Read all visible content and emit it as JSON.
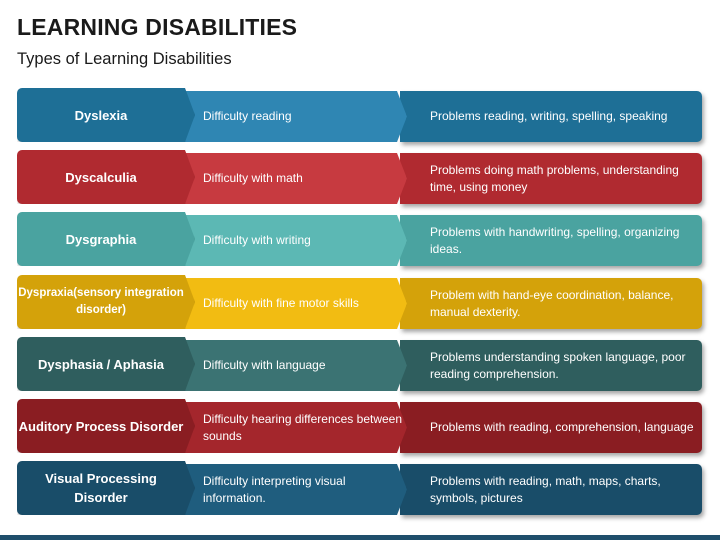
{
  "header": {
    "title": "LEARNING DISABILITIES",
    "subtitle": "Types of Learning Disabilities"
  },
  "rows": [
    {
      "name": "Dyslexia",
      "short": "Difficulty reading",
      "detail": "Problems reading, writing, spelling, speaking",
      "color": "#1e6f96",
      "color_light": "#2f86b3"
    },
    {
      "name": "Dyscalculia",
      "short": "Difficulty with math",
      "detail": "Problems doing math problems, understanding time, using money",
      "color": "#b02a30",
      "color_light": "#c73a40"
    },
    {
      "name": "Dysgraphia",
      "short": "Difficulty with writing",
      "detail": "Problems with handwriting, spelling, organizing ideas.",
      "color": "#4aa3a0",
      "color_light": "#5cb8b4"
    },
    {
      "name": "Dyspraxia(sensory integration disorder)",
      "short": "Difficulty with fine motor skills",
      "detail": "Problem with hand-eye coordination, balance, manual dexterity.",
      "color": "#d4a20a",
      "color_light": "#f2bc12"
    },
    {
      "name": "Dysphasia / Aphasia",
      "short": "Difficulty with language",
      "detail": "Problems understanding spoken language, poor reading comprehension.",
      "color": "#2f5e5e",
      "color_light": "#3b7373"
    },
    {
      "name": "Auditory Process Disorder",
      "short": "Difficulty hearing differences between sounds",
      "detail": "Problems with reading, comprehension, language",
      "color": "#8a1d22",
      "color_light": "#a4262c"
    },
    {
      "name": "Visual Processing Disorder",
      "short": "Difficulty interpreting visual information.",
      "detail": "Problems with reading, math, maps, charts, symbols, pictures",
      "color": "#194d69",
      "color_light": "#1f5d7e"
    }
  ]
}
